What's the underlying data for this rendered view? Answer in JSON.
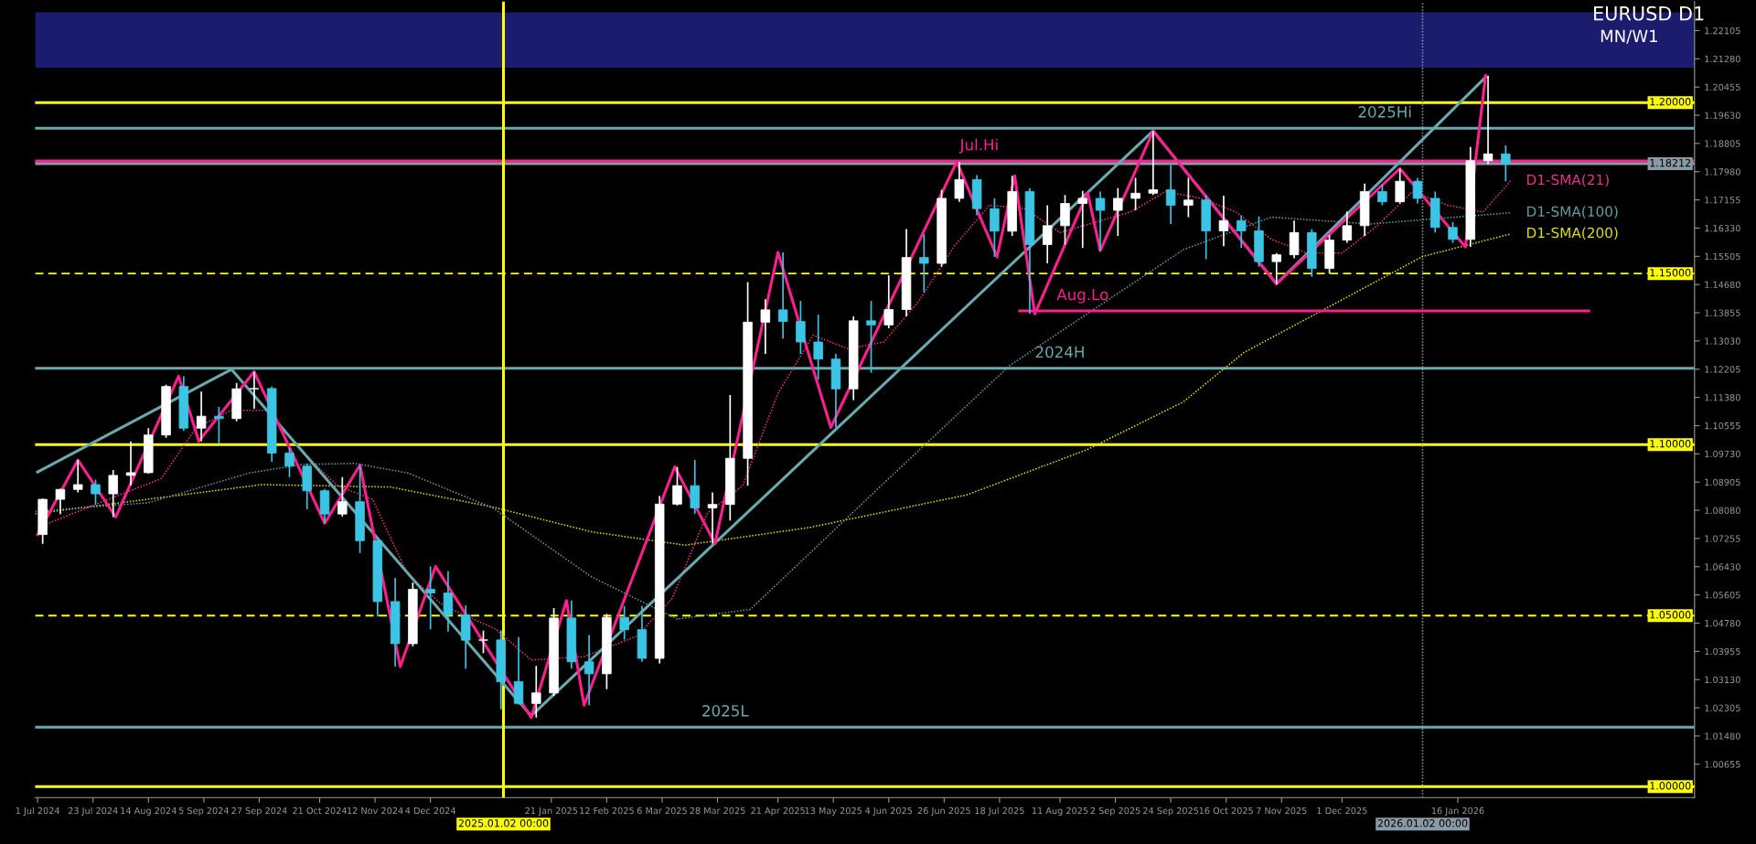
{
  "chart_data": {
    "type": "candlestick",
    "title": "EURUSD D1",
    "subtitle": "MN/W1",
    "xlim": [
      "2024-06-30",
      "2026-04-20"
    ],
    "ylim": [
      0.9968,
      1.2295
    ],
    "xticks": [
      {
        "value": "2024-07-01",
        "label": "1 Jul 2024"
      },
      {
        "value": "2024-07-23",
        "label": "23 Jul 2024"
      },
      {
        "value": "2024-08-14",
        "label": "14 Aug 2024"
      },
      {
        "value": "2024-09-05",
        "label": "5 Sep 2024"
      },
      {
        "value": "2024-09-27",
        "label": "27 Sep 2024"
      },
      {
        "value": "2024-10-21",
        "label": "21 Oct 2024"
      },
      {
        "value": "2024-11-12",
        "label": "12 Nov 2024"
      },
      {
        "value": "2024-12-04",
        "label": "4 Dec 2024"
      },
      {
        "value": "2025-01-21",
        "label": "21 Jan 2025"
      },
      {
        "value": "2025-02-12",
        "label": "12 Feb 2025"
      },
      {
        "value": "2025-03-06",
        "label": "6 Mar 2025"
      },
      {
        "value": "2025-03-28",
        "label": "28 Mar 2025"
      },
      {
        "value": "2025-04-21",
        "label": "21 Apr 2025"
      },
      {
        "value": "2025-05-13",
        "label": "13 May 2025"
      },
      {
        "value": "2025-06-04",
        "label": "4 Jun 2025"
      },
      {
        "value": "2025-06-26",
        "label": "26 Jun 2025"
      },
      {
        "value": "2025-07-18",
        "label": "18 Jul 2025"
      },
      {
        "value": "2025-08-11",
        "label": "11 Aug 2025"
      },
      {
        "value": "2025-09-02",
        "label": "2 Sep 2025"
      },
      {
        "value": "2025-09-24",
        "label": "24 Sep 2025"
      },
      {
        "value": "2025-10-16",
        "label": "16 Oct 2025"
      },
      {
        "value": "2025-11-07",
        "label": "7 Nov 2025"
      },
      {
        "value": "2025-12-01",
        "label": "1 Dec 2025"
      },
      {
        "value": "2026-01-16",
        "label": "16 Jan 2026"
      }
    ],
    "yticks": [
      1.22105,
      {
        "value": 1.2128,
        "label": "1.21280"
      },
      1.20455,
      {
        "value": 1.1963,
        "label": "1.19630"
      },
      1.18805,
      {
        "value": 1.1798,
        "label": "1.17980"
      },
      1.17155,
      {
        "value": 1.1633,
        "label": "1.16330"
      },
      1.15505,
      {
        "value": 1.1468,
        "label": "1.14680"
      },
      1.13855,
      {
        "value": 1.1303,
        "label": "1.13030"
      },
      1.12205,
      {
        "value": 1.1138,
        "label": "1.11380"
      },
      1.10555,
      {
        "value": 1.0973,
        "label": "1.09730"
      },
      1.08905,
      {
        "value": 1.0808,
        "label": "1.08080"
      },
      1.07255,
      {
        "value": 1.0643,
        "label": "1.06430"
      },
      1.05605,
      {
        "value": 1.0478,
        "label": "1.04780"
      },
      1.03955,
      {
        "value": 1.0313,
        "label": "1.03130"
      },
      1.02305,
      {
        "value": 1.0148,
        "label": "1.01480"
      },
      1.00655
    ],
    "grid": false,
    "legend": false,
    "bands": [
      {
        "axis": "y",
        "from": 1.2102,
        "to": 1.2264,
        "color": "#1c1c6e"
      }
    ],
    "ref_lines": [
      {
        "axis": "y",
        "value": 1.2,
        "label": "1.20000",
        "color": "#ffff00",
        "line_style": "solid"
      },
      {
        "axis": "y",
        "value": 1.1925,
        "color": "#6aa9ad",
        "line_style": "solid"
      },
      {
        "axis": "y",
        "value": 1.1829,
        "color": "#ff1f8f",
        "line_style": "solid"
      },
      {
        "axis": "y",
        "value": 1.18212,
        "label": "1.18212",
        "color": "#8a9aa6",
        "line_style": "solid"
      },
      {
        "axis": "y",
        "value": 1.15,
        "label": "1.15000",
        "color": "#ffff00",
        "line_style": "dashed"
      },
      {
        "axis": "y",
        "value": 1.1223,
        "color": "#6aa9ad",
        "line_style": "solid"
      },
      {
        "axis": "y",
        "value": 1.1,
        "label": "1.10000",
        "color": "#ffff00",
        "line_style": "solid"
      },
      {
        "axis": "y",
        "value": 1.05,
        "label": "1.05000",
        "color": "#ffff00",
        "line_style": "dashed"
      },
      {
        "axis": "y",
        "value": 1.0174,
        "color": "#6aa9ad",
        "line_style": "solid"
      },
      {
        "axis": "y",
        "value": 1.0,
        "label": "1.00000",
        "color": "#ffff00",
        "line_style": "solid"
      },
      {
        "axis": "x",
        "value": "2025-01-02",
        "label": "2025.01.02 00:00",
        "color": "#ffff00",
        "line_style": "solid"
      },
      {
        "axis": "x",
        "value": "2026-01-02",
        "label": "2026.01.02 00:00",
        "color": "#8a9aa6",
        "line_style": "dotted"
      }
    ],
    "annotations": [
      {
        "text": "2025Hi",
        "x": "2025-12-18",
        "y": 1.1925
      },
      {
        "text": "Jul.Hi",
        "x": "2025-07-10",
        "y": 1.1829
      },
      {
        "text": "Aug.Lo",
        "x": "2025-08-20",
        "y": 1.1391
      },
      {
        "text": "2024H",
        "x": "2025-08-11",
        "y": 1.1223
      },
      {
        "text": "2025L",
        "x": "2025-03-31",
        "y": 1.0174
      }
    ],
    "series": [
      {
        "type": "line",
        "name": "D1-SMA(200)",
        "color": "#e0e000",
        "line_style": "dotted",
        "x": [
          "2024-06-30",
          "2024-09-28",
          "2024-11-18",
          "2024-12-29",
          "2025-02-06",
          "2025-03-15",
          "2025-05-03",
          "2025-07-05",
          "2025-08-22",
          "2025-09-29",
          "2025-10-23",
          "2026-01-02",
          "2026-02-06"
        ],
        "values": [
          1.0798,
          1.0883,
          1.0876,
          1.0817,
          1.0745,
          1.0706,
          1.0757,
          1.0853,
          1.0986,
          1.1125,
          1.1269,
          1.155,
          1.1616
        ]
      },
      {
        "type": "line",
        "name": "D1-SMA(100)",
        "color": "#5f9ea0",
        "line_style": "dotted",
        "x": [
          "2024-06-30",
          "2024-08-14",
          "2024-09-23",
          "2024-10-14",
          "2024-11-04",
          "2024-11-25",
          "2024-12-29",
          "2025-02-06",
          "2025-03-12",
          "2025-04-10",
          "2025-06-03",
          "2025-07-22",
          "2025-09-29",
          "2025-11-03",
          "2025-12-12",
          "2026-02-06"
        ],
        "values": [
          1.0805,
          1.083,
          1.0917,
          1.0942,
          1.0945,
          1.0917,
          1.0814,
          1.0613,
          1.049,
          1.0518,
          1.0894,
          1.1231,
          1.157,
          1.1665,
          1.1645,
          1.1678
        ]
      },
      {
        "type": "line",
        "name": "D1-SMA(21)",
        "color": "#e8338a",
        "line_style": "dotted",
        "x": [
          "2024-07-01",
          "2024-07-29",
          "2024-08-19",
          "2024-09-02",
          "2024-09-16",
          "2024-09-30",
          "2024-10-14",
          "2024-10-28",
          "2024-11-11",
          "2024-11-25",
          "2024-12-09",
          "2024-12-30",
          "2025-01-13",
          "2025-02-03",
          "2025-02-24",
          "2025-03-10",
          "2025-03-24",
          "2025-04-07",
          "2025-04-21",
          "2025-05-05",
          "2025-05-19",
          "2025-06-02",
          "2025-06-16",
          "2025-06-30",
          "2025-07-14",
          "2025-07-28",
          "2025-08-11",
          "2025-08-25",
          "2025-09-08",
          "2025-09-22",
          "2025-10-06",
          "2025-10-20",
          "2025-11-03",
          "2025-11-17",
          "2025-12-01",
          "2025-12-15",
          "2025-12-29",
          "2026-01-12",
          "2026-01-26",
          "2026-02-06"
        ],
        "values": [
          1.0757,
          1.084,
          1.09,
          1.105,
          1.11,
          1.11,
          1.098,
          1.088,
          1.084,
          1.062,
          1.053,
          1.046,
          1.037,
          1.038,
          1.044,
          1.055,
          1.08,
          1.088,
          1.115,
          1.132,
          1.128,
          1.13,
          1.142,
          1.158,
          1.17,
          1.169,
          1.162,
          1.165,
          1.168,
          1.174,
          1.172,
          1.168,
          1.16,
          1.156,
          1.156,
          1.164,
          1.174,
          1.17,
          1.168,
          1.1771
        ]
      },
      {
        "type": "line",
        "color": "#6aa9ad",
        "line_style": "solid",
        "x": [
          "2024-07-01",
          "2024-09-16",
          "2025-01-13",
          "2025-09-17",
          "2025-11-05",
          "2026-01-27"
        ],
        "values": [
          1.092,
          1.122,
          1.0207,
          1.1917,
          1.147,
          1.2074
        ]
      },
      {
        "type": "line",
        "color": "#ff1f8f",
        "line_style": "solid",
        "x": [
          "2024-07-01",
          "2024-07-17",
          "2024-08-01",
          "2024-08-26",
          "2024-09-03",
          "2024-09-25",
          "2024-10-23",
          "2024-11-06",
          "2024-11-22",
          "2024-12-06",
          "2025-01-13",
          "2025-01-27",
          "2025-02-03",
          "2025-03-11",
          "2025-03-27",
          "2025-04-21",
          "2025-05-12",
          "2025-07-01",
          "2025-07-17",
          "2025-07-24",
          "2025-08-01",
          "2025-08-22",
          "2025-08-27",
          "2025-09-17",
          "2025-11-05",
          "2025-12-24",
          "2026-01-19",
          "2026-01-27"
        ],
        "values": [
          1.0737,
          1.0955,
          1.0788,
          1.12,
          1.101,
          1.1213,
          1.077,
          1.094,
          1.0351,
          1.0644,
          1.0202,
          1.0544,
          1.0238,
          1.0935,
          1.0711,
          1.1562,
          1.105,
          1.1827,
          1.1549,
          1.1786,
          1.1382,
          1.1737,
          1.1567,
          1.1917,
          1.147,
          1.1807,
          1.1578,
          1.2079
        ]
      },
      {
        "type": "line",
        "color": "#ff1f8f",
        "line_style": "solid",
        "x": [
          "2025-07-26",
          "2026-03-09"
        ],
        "values": [
          1.1391,
          1.1391
        ]
      },
      {
        "color": "#ffffff",
        "x": [
          "2024-07-03",
          "2024-07-10",
          "2024-07-17",
          "2024-07-31",
          "2024-08-07",
          "2024-08-14",
          "2024-08-21",
          "2024-09-04",
          "2024-09-18",
          "2024-09-25",
          "2024-10-30",
          "2024-11-27",
          "2024-12-25",
          "2025-01-15",
          "2025-01-22",
          "2025-02-12",
          "2025-03-05",
          "2025-03-12",
          "2025-03-26",
          "2025-04-02",
          "2025-04-09",
          "2025-04-16",
          "2025-05-21",
          "2025-06-04",
          "2025-06-11",
          "2025-06-25",
          "2025-07-02",
          "2025-07-23",
          "2025-08-06",
          "2025-08-13",
          "2025-08-20",
          "2025-09-03",
          "2025-09-10",
          "2025-09-17",
          "2025-10-01",
          "2025-10-15",
          "2025-11-05",
          "2025-11-12",
          "2025-11-26",
          "2025-12-03",
          "2025-12-10",
          "2025-12-24",
          "2026-01-21",
          "2026-01-28"
        ],
        "ohlc": [
          [
            1.0737,
            1.0842,
            1.071,
            1.084
          ],
          [
            1.084,
            1.0871,
            1.0797,
            1.0869
          ],
          [
            1.0869,
            1.0955,
            1.086,
            1.0883
          ],
          [
            1.0856,
            1.0926,
            1.0788,
            1.091
          ],
          [
            1.091,
            1.1009,
            1.088,
            1.0918
          ],
          [
            1.0918,
            1.1048,
            1.0915,
            1.1028
          ],
          [
            1.1028,
            1.1175,
            1.102,
            1.117
          ],
          [
            1.1048,
            1.1155,
            1.101,
            1.1083
          ],
          [
            1.1076,
            1.118,
            1.1068,
            1.1163
          ],
          [
            1.1163,
            1.1213,
            1.1105,
            1.1164
          ],
          [
            1.0797,
            1.0905,
            1.079,
            1.0833
          ],
          [
            1.0418,
            1.0597,
            1.041,
            1.0577
          ],
          [
            1.0428,
            1.0456,
            1.039,
            1.0429
          ],
          [
            1.0243,
            1.0353,
            1.0202,
            1.0274
          ],
          [
            1.0274,
            1.0522,
            1.0265,
            1.0493
          ],
          [
            1.033,
            1.0505,
            1.0285,
            1.0495
          ],
          [
            1.0375,
            1.085,
            1.036,
            1.0826
          ],
          [
            1.0826,
            1.0935,
            1.0822,
            1.088
          ],
          [
            1.0815,
            1.086,
            1.0711,
            1.0825
          ],
          [
            1.0825,
            1.1145,
            1.0778,
            1.096
          ],
          [
            1.096,
            1.1475,
            1.088,
            1.1358
          ],
          [
            1.1358,
            1.1425,
            1.1265,
            1.1394
          ],
          [
            1.1163,
            1.1375,
            1.113,
            1.1362
          ],
          [
            1.135,
            1.1495,
            1.134,
            1.1395
          ],
          [
            1.1395,
            1.163,
            1.1375,
            1.1547
          ],
          [
            1.153,
            1.1745,
            1.152,
            1.172
          ],
          [
            1.172,
            1.1827,
            1.171,
            1.1775
          ],
          [
            1.1624,
            1.1786,
            1.161,
            1.174
          ],
          [
            1.1585,
            1.17,
            1.153,
            1.164
          ],
          [
            1.164,
            1.173,
            1.1585,
            1.1705
          ],
          [
            1.1705,
            1.1742,
            1.1575,
            1.172
          ],
          [
            1.1685,
            1.175,
            1.161,
            1.172
          ],
          [
            1.172,
            1.178,
            1.1685,
            1.1735
          ],
          [
            1.1735,
            1.1917,
            1.173,
            1.1745
          ],
          [
            1.17,
            1.178,
            1.1665,
            1.1715
          ],
          [
            1.1625,
            1.1728,
            1.158,
            1.1655
          ],
          [
            1.1535,
            1.156,
            1.1469,
            1.1555
          ],
          [
            1.1555,
            1.1655,
            1.1545,
            1.162
          ],
          [
            1.1515,
            1.1613,
            1.15,
            1.1598
          ],
          [
            1.1598,
            1.1682,
            1.159,
            1.164
          ],
          [
            1.164,
            1.1763,
            1.161,
            1.174
          ],
          [
            1.171,
            1.1807,
            1.1705,
            1.177
          ],
          [
            1.16,
            1.187,
            1.1578,
            1.183
          ],
          [
            1.183,
            1.2079,
            1.182,
            1.185
          ]
        ]
      },
      {
        "color": "#3cc4e4",
        "x": [
          "2024-07-24",
          "2024-08-28",
          "2024-09-11",
          "2024-10-02",
          "2024-10-09",
          "2024-10-16",
          "2024-10-23",
          "2024-11-06",
          "2024-11-13",
          "2024-11-20",
          "2024-12-04",
          "2024-12-11",
          "2024-12-18",
          "2025-01-01",
          "2025-01-08",
          "2025-01-29",
          "2025-02-05",
          "2025-02-19",
          "2025-02-26",
          "2025-03-19",
          "2025-04-23",
          "2025-04-30",
          "2025-05-07",
          "2025-05-14",
          "2025-05-28",
          "2025-06-18",
          "2025-07-09",
          "2025-07-16",
          "2025-07-30",
          "2025-08-27",
          "2025-09-24",
          "2025-10-08",
          "2025-10-22",
          "2025-10-29",
          "2025-11-19",
          "2025-12-17",
          "2025-12-31",
          "2026-01-07",
          "2026-01-14",
          "2026-02-04"
        ],
        "ohlc": [
          [
            1.0883,
            1.0898,
            1.0825,
            1.0856
          ],
          [
            1.117,
            1.12,
            1.104,
            1.1048
          ],
          [
            1.1083,
            1.111,
            1.1002,
            1.1076
          ],
          [
            1.1164,
            1.117,
            1.095,
            1.0975
          ],
          [
            1.0975,
            1.099,
            1.0905,
            1.0937
          ],
          [
            1.0937,
            1.0945,
            1.0811,
            1.0865
          ],
          [
            1.0865,
            1.087,
            1.077,
            1.0797
          ],
          [
            1.0833,
            1.094,
            1.0683,
            1.0719
          ],
          [
            1.0719,
            1.0725,
            1.0497,
            1.0541
          ],
          [
            1.0541,
            1.061,
            1.0351,
            1.0418
          ],
          [
            1.0577,
            1.0644,
            1.046,
            1.0566
          ],
          [
            1.0566,
            1.063,
            1.0453,
            1.0502
          ],
          [
            1.0502,
            1.053,
            1.0345,
            1.0428
          ],
          [
            1.0429,
            1.0457,
            1.0226,
            1.0307
          ],
          [
            1.0307,
            1.0437,
            1.024,
            1.0243
          ],
          [
            1.0493,
            1.0544,
            1.0345,
            1.0365
          ],
          [
            1.0365,
            1.0443,
            1.0238,
            1.033
          ],
          [
            1.0495,
            1.0528,
            1.043,
            1.0459
          ],
          [
            1.0459,
            1.0528,
            1.0365,
            1.0375
          ],
          [
            1.088,
            1.0955,
            1.0798,
            1.0815
          ],
          [
            1.1394,
            1.1562,
            1.131,
            1.136
          ],
          [
            1.136,
            1.142,
            1.1265,
            1.13
          ],
          [
            1.13,
            1.138,
            1.119,
            1.125
          ],
          [
            1.125,
            1.1265,
            1.105,
            1.1163
          ],
          [
            1.1362,
            1.142,
            1.121,
            1.135
          ],
          [
            1.1547,
            1.1615,
            1.1445,
            1.153
          ],
          [
            1.1775,
            1.1788,
            1.167,
            1.169
          ],
          [
            1.169,
            1.172,
            1.1549,
            1.1624
          ],
          [
            1.174,
            1.175,
            1.1382,
            1.1585
          ],
          [
            1.172,
            1.174,
            1.1567,
            1.1685
          ],
          [
            1.1745,
            1.1818,
            1.1645,
            1.17
          ],
          [
            1.1715,
            1.1728,
            1.1542,
            1.1625
          ],
          [
            1.1655,
            1.167,
            1.1575,
            1.1625
          ],
          [
            1.1625,
            1.1667,
            1.152,
            1.1535
          ],
          [
            1.162,
            1.163,
            1.1491,
            1.1515
          ],
          [
            1.174,
            1.176,
            1.17,
            1.171
          ],
          [
            1.177,
            1.178,
            1.1705,
            1.172
          ],
          [
            1.172,
            1.174,
            1.162,
            1.1635
          ],
          [
            1.1635,
            1.165,
            1.159,
            1.16
          ],
          [
            1.185,
            1.1875,
            1.177,
            1.1821
          ]
        ]
      }
    ]
  }
}
